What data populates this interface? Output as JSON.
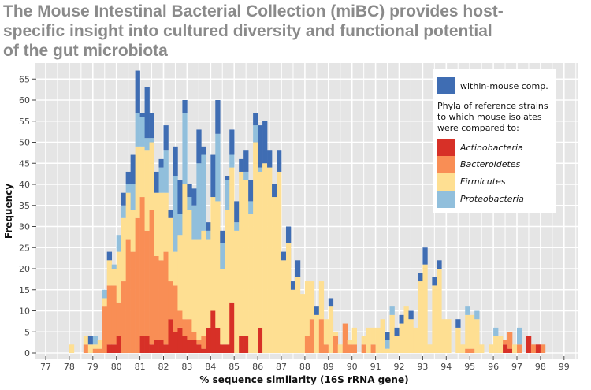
{
  "title_lines": [
    "The Mouse Intestinal Bacterial Collection (miBC) provides host-",
    "specific insight into cultured diversity and functional potential",
    "of the gut microbiota"
  ],
  "chart_data": {
    "type": "bar",
    "stacked": true,
    "histogram": true,
    "xlabel": "% sequence similarity (16S rRNA gene)",
    "ylabel": "Frequency",
    "xlim": [
      77,
      99
    ],
    "ylim": [
      0,
      65
    ],
    "x_ticks": [
      77,
      78,
      79,
      80,
      81,
      82,
      83,
      84,
      85,
      86,
      87,
      88,
      89,
      90,
      91,
      92,
      93,
      94,
      95,
      96,
      97,
      98,
      99
    ],
    "y_ticks": [
      0,
      5,
      10,
      15,
      20,
      25,
      30,
      35,
      40,
      45,
      50,
      55,
      60,
      65
    ],
    "grid": true,
    "bin_start": 78.0,
    "bin_width": 0.2,
    "legend": {
      "placement": "top-right",
      "within_label": "within-mouse comp.",
      "heading_lines": [
        "Phyla of reference strains",
        "to which mouse isolates",
        "were compared to:"
      ]
    },
    "series": [
      {
        "name": "Actinobacteria",
        "color": "#d73027",
        "values": [
          0,
          0,
          0,
          0,
          0,
          0,
          0,
          0,
          2,
          2,
          4,
          0,
          0,
          0,
          0,
          4,
          4,
          2,
          3,
          3,
          2,
          8,
          5,
          6,
          4,
          3,
          3,
          2,
          1,
          6,
          10,
          6,
          2,
          2,
          12,
          0,
          4,
          4,
          0,
          0,
          6,
          0,
          0,
          0,
          0,
          0,
          0,
          0,
          0,
          0,
          0,
          0,
          0,
          0,
          0,
          0,
          0,
          0,
          0,
          0,
          0,
          0,
          0,
          0,
          0,
          0,
          0,
          0,
          0,
          0,
          0,
          0,
          0,
          0,
          0,
          0,
          0,
          0,
          0,
          0,
          0,
          0,
          0,
          0,
          0,
          0,
          0,
          0,
          0,
          0,
          0,
          0,
          2,
          1,
          0,
          0,
          0,
          4,
          0,
          2,
          0
        ]
      },
      {
        "name": "Bacteroidetes",
        "color": "#f98e55",
        "values": [
          0,
          0,
          0,
          2,
          0,
          1,
          1,
          11,
          14,
          14,
          8,
          17,
          27,
          24,
          32,
          33,
          25,
          32,
          20,
          19,
          22,
          9,
          11,
          4,
          4,
          5,
          2,
          1,
          3,
          0,
          0,
          0,
          0,
          0,
          0,
          0,
          0,
          0,
          0,
          0,
          0,
          0,
          0,
          0,
          0,
          0,
          0,
          0,
          0,
          0,
          4,
          8,
          0,
          8,
          2,
          0,
          4,
          0,
          7,
          2,
          2,
          0,
          2,
          0,
          2,
          0,
          0,
          0,
          0,
          0,
          0,
          0,
          0,
          0,
          0,
          0,
          0,
          0,
          0,
          0,
          0,
          0,
          0,
          0,
          1,
          1,
          0,
          0,
          0,
          0,
          0,
          0,
          1,
          4,
          0,
          2,
          0,
          0,
          2,
          0,
          2
        ]
      },
      {
        "name": "Firmicutes",
        "color": "#fedf92",
        "values": [
          2,
          0,
          0,
          2,
          2,
          1,
          2,
          2,
          6,
          4,
          12,
          15,
          11,
          10,
          17,
          12,
          19,
          16,
          15,
          16,
          14,
          15,
          8,
          18,
          32,
          26,
          22,
          24,
          25,
          21,
          27,
          30,
          18,
          32,
          32,
          29,
          39,
          37,
          33,
          50,
          37,
          45,
          44,
          37,
          43,
          22,
          26,
          15,
          18,
          14,
          13,
          9,
          9,
          9,
          6,
          11,
          1,
          2,
          0,
          1,
          4,
          0,
          2,
          6,
          4,
          6,
          8,
          1,
          9,
          4,
          7,
          11,
          8,
          6,
          17,
          21,
          2,
          16,
          20,
          8,
          8,
          0,
          6,
          2,
          8,
          8,
          8,
          2,
          0,
          2,
          4,
          4,
          0,
          0,
          2,
          0,
          0,
          0,
          0,
          0,
          0
        ]
      },
      {
        "name": "Proteobacteria",
        "color": "#91bfdc",
        "values": [
          0,
          0,
          0,
          0,
          0,
          2,
          0,
          2,
          0,
          1,
          4,
          3,
          2,
          6,
          8,
          7,
          3,
          1,
          0,
          6,
          10,
          0,
          18,
          5,
          17,
          3,
          8,
          18,
          18,
          2,
          0,
          16,
          6,
          7,
          3,
          2,
          0,
          2,
          3,
          4,
          1,
          0,
          0,
          0,
          0,
          0,
          0,
          0,
          0,
          0,
          0,
          0,
          0,
          0,
          0,
          0,
          0,
          0,
          0,
          0,
          0,
          0,
          0,
          0,
          0,
          0,
          0,
          2,
          2,
          0,
          0,
          0,
          0,
          0,
          0,
          0,
          0,
          0,
          0,
          0,
          0,
          0,
          0,
          0,
          2,
          0,
          2,
          0,
          0,
          0,
          2,
          0,
          0,
          0,
          0,
          4,
          0,
          0,
          0,
          0,
          0
        ]
      },
      {
        "name": "within-mouse comp.",
        "color": "#3f6db3",
        "values": [
          0,
          0,
          0,
          0,
          2,
          0,
          0,
          0,
          2,
          0,
          0,
          3,
          3,
          7,
          10,
          1,
          12,
          6,
          5,
          2,
          6,
          2,
          7,
          8,
          3,
          3,
          4,
          8,
          2,
          2,
          10,
          8,
          3,
          1,
          6,
          5,
          3,
          5,
          5,
          3,
          10,
          10,
          4,
          3,
          5,
          2,
          4,
          2,
          4,
          0,
          0,
          0,
          2,
          0,
          0,
          2,
          0,
          0,
          0,
          0,
          0,
          0,
          0,
          0,
          0,
          0,
          0,
          2,
          0,
          2,
          2,
          0,
          2,
          0,
          2,
          4,
          0,
          2,
          2,
          0,
          0,
          0,
          2,
          0,
          0,
          0,
          0,
          0,
          0,
          0,
          0,
          0,
          0,
          0,
          0,
          0,
          0,
          0,
          0,
          0,
          0
        ]
      }
    ],
    "panel_background": "#e5e5e5"
  }
}
